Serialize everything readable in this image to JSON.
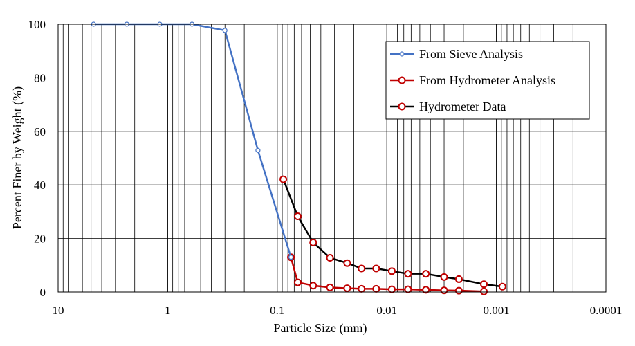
{
  "chart_data": {
    "type": "scatter",
    "xlabel": "Particle Size (mm)",
    "ylabel": "Percent Finer by Weight (%)",
    "xscale": "log",
    "x_reversed": true,
    "xlim": [
      10,
      0.0001
    ],
    "ylim": [
      0,
      100
    ],
    "x_ticks": [
      10,
      1,
      0.1,
      0.01,
      0.001,
      0.0001
    ],
    "x_tick_labels": [
      "10",
      "1",
      "0.1",
      "0.01",
      "0.001",
      "0.0001"
    ],
    "y_ticks": [
      0,
      20,
      40,
      60,
      80,
      100
    ],
    "y_tick_labels": [
      "0",
      "20",
      "40",
      "60",
      "80",
      "100"
    ],
    "grid": "major and minor vertical, major horizontal",
    "legend_position": "top-right",
    "series": [
      {
        "name": "From Sieve Analysis",
        "color": "#4472C4",
        "marker": "hollow-circle-small",
        "x": [
          4.75,
          2.36,
          1.18,
          0.6,
          0.3,
          0.15,
          0.075
        ],
        "y": [
          100,
          100,
          100,
          100,
          97.7,
          52.9,
          13
        ]
      },
      {
        "name": "From Hydrometer Analysis",
        "color": "#C00000",
        "marker": "hollow-circle",
        "x": [
          0.075,
          0.065,
          0.047,
          0.033,
          0.023,
          0.017,
          0.0125,
          0.009,
          0.0064,
          0.0044,
          0.003,
          0.0022,
          0.0013
        ],
        "y": [
          13,
          3.6,
          2.4,
          1.7,
          1.4,
          1.2,
          1.2,
          1.0,
          1.0,
          0.8,
          0.6,
          0.5,
          0.2
        ]
      },
      {
        "name": "Hydrometer Data",
        "color": "#000000",
        "marker": "hollow-circle-red",
        "x": [
          0.088,
          0.065,
          0.047,
          0.033,
          0.023,
          0.017,
          0.0125,
          0.009,
          0.0064,
          0.0044,
          0.003,
          0.0022,
          0.0013,
          0.00088
        ],
        "y": [
          42.1,
          28.3,
          18.5,
          12.8,
          10.8,
          8.8,
          8.8,
          7.8,
          6.8,
          6.8,
          5.6,
          4.8,
          2.9,
          2.0
        ]
      }
    ]
  }
}
